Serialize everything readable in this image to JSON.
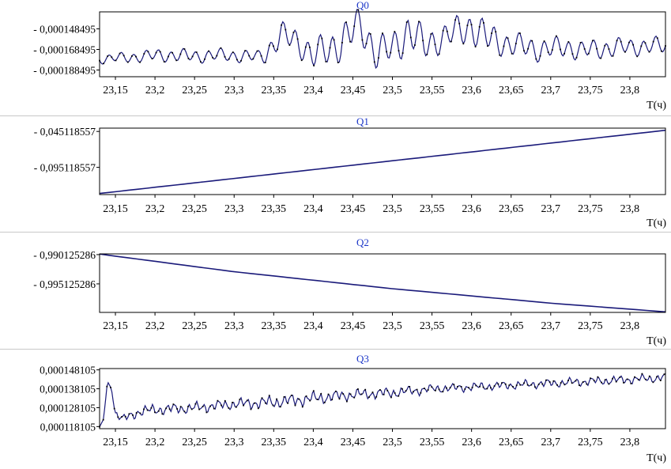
{
  "colors": {
    "series": "#1a1a7a",
    "title": "#1a35c8",
    "axis": "#000000",
    "frame": "#000000",
    "separator": "#c8c8c8"
  },
  "chart_data": [
    {
      "type": "line",
      "title": "Q0",
      "xlabel": "T(ч)",
      "ylabel": "",
      "xlim": [
        23.13,
        23.845
      ],
      "ylim": [
        0.000132,
        0.000195
      ],
      "x_ticks": [
        "23,15",
        "23,2",
        "23,25",
        "23,3",
        "23,35",
        "23,4",
        "23,45",
        "23,5",
        "23,55",
        "23,6",
        "23,65",
        "23,7",
        "23,75",
        "23,8"
      ],
      "y_ticks": [
        "- 0,000148495",
        "- 0,000168495",
        "- 0,000188495"
      ],
      "y_tick_values": [
        0.000148495,
        0.000168495,
        0.000188495
      ],
      "y_inverted": true,
      "grid": false,
      "series": [
        {
          "x": [
            23.13,
            23.17,
            23.21,
            23.25,
            23.29,
            23.33,
            23.34,
            23.36,
            23.38,
            23.4,
            23.42,
            23.44,
            23.46,
            23.48,
            23.5,
            23.52,
            23.54,
            23.56,
            23.58,
            23.6,
            23.62,
            23.64,
            23.66,
            23.68,
            23.7,
            23.72,
            23.74,
            23.76,
            23.78,
            23.8,
            23.84
          ],
          "y": [
            0.000178,
            0.000176,
            0.000174,
            0.000175,
            0.000174,
            0.000176,
            0.000172,
            0.000155,
            0.00016,
            0.000175,
            0.000168,
            0.000158,
            0.000145,
            0.000172,
            0.000168,
            0.00015,
            0.000165,
            0.000158,
            0.000152,
            0.000146,
            0.000158,
            0.000162,
            0.000165,
            0.000168,
            0.000168,
            0.000166,
            0.00017,
            0.000168,
            0.000167,
            0.000166,
            0.000165
          ],
          "amplitude": [
            4e-06,
            5e-06,
            6e-06,
            6e-06,
            6e-06,
            6e-06,
            9e-06,
            1.2e-05,
            1.2e-05,
            1.4e-05,
            1.6e-05,
            1.8e-05,
            1.7e-05,
            1.6e-05,
            1.6e-05,
            1.8e-05,
            1.6e-05,
            1.3e-05,
            1.4e-05,
            1.6e-05,
            1.5e-05,
            1.2e-05,
            1.1e-05,
            1.1e-05,
            1e-05,
            1e-05,
            9e-06,
            9e-06,
            9e-06,
            8e-06,
            8e-06
          ]
        }
      ]
    },
    {
      "type": "line",
      "title": "Q1",
      "xlabel": "T(ч)",
      "ylabel": "",
      "xlim": [
        23.13,
        23.845
      ],
      "ylim": [
        0.0405,
        0.133
      ],
      "x_ticks": [
        "23,15",
        "23,2",
        "23,25",
        "23,3",
        "23,35",
        "23,4",
        "23,45",
        "23,5",
        "23,55",
        "23,6",
        "23,65",
        "23,7",
        "23,75",
        "23,8"
      ],
      "y_ticks": [
        "- 0,045118557",
        "- 0,095118557"
      ],
      "y_tick_values": [
        0.045118557,
        0.095118557
      ],
      "y_inverted": true,
      "grid": false,
      "series": [
        {
          "x": [
            23.13,
            23.845
          ],
          "y": [
            0.1315,
            0.0435
          ]
        }
      ]
    },
    {
      "type": "line",
      "title": "Q2",
      "xlabel": "T(ч)",
      "ylabel": "",
      "xlim": [
        23.13,
        23.845
      ],
      "ylim": [
        0.99,
        1.0
      ],
      "x_ticks": [
        "23,15",
        "23,2",
        "23,25",
        "23,3",
        "23,35",
        "23,4",
        "23,45",
        "23,5",
        "23,55",
        "23,6",
        "23,65",
        "23,7",
        "23,75",
        "23,8"
      ],
      "y_ticks": [
        "- 0,990125286",
        "- 0,995125286"
      ],
      "y_tick_values": [
        0.990125286,
        0.995125286
      ],
      "y_inverted": true,
      "grid": false,
      "series": [
        {
          "x": [
            23.13,
            23.3,
            23.5,
            23.7,
            23.845
          ],
          "y": [
            0.99003,
            0.99305,
            0.99595,
            0.99842,
            0.9999
          ]
        }
      ]
    },
    {
      "type": "line",
      "title": "Q3",
      "xlabel": "T(ч)",
      "ylabel": "",
      "xlim": [
        23.13,
        23.845
      ],
      "ylim": [
        0.000117,
        0.0001488
      ],
      "x_ticks": [
        "23,15",
        "23,2",
        "23,25",
        "23,3",
        "23,35",
        "23,4",
        "23,45",
        "23,5",
        "23,55",
        "23,6",
        "23,65",
        "23,7",
        "23,75",
        "23,8"
      ],
      "y_ticks": [
        "0,000148105",
        "0,000138105",
        "0,000128105",
        "0,000118105"
      ],
      "y_tick_values": [
        0.000148105,
        0.000138105,
        0.000128105,
        0.000118105
      ],
      "y_inverted": false,
      "grid": false,
      "series": [
        {
          "x": [
            23.13,
            23.135,
            23.14,
            23.145,
            23.15,
            23.16,
            23.18,
            23.2,
            23.25,
            23.3,
            23.35,
            23.4,
            23.45,
            23.5,
            23.55,
            23.6,
            23.65,
            23.7,
            23.75,
            23.8,
            23.845
          ],
          "y": [
            0.000118,
            0.000122,
            0.000142,
            0.000138,
            0.000125,
            0.000122,
            0.000126,
            0.000127,
            0.000128,
            0.00013,
            0.000131,
            0.000133,
            0.000135,
            0.000136,
            0.000138,
            0.000139,
            0.00014,
            0.000141,
            0.000142,
            0.000143,
            0.000144
          ],
          "amplitude": [
            0.0,
            0.0,
            0.0,
            0.0,
            2e-06,
            2e-06,
            2.5e-06,
            2.5e-06,
            2.5e-06,
            2.5e-06,
            3e-06,
            3e-06,
            2.5e-06,
            2.5e-06,
            2e-06,
            2e-06,
            2e-06,
            2e-06,
            2e-06,
            2e-06,
            2e-06
          ]
        }
      ]
    }
  ]
}
